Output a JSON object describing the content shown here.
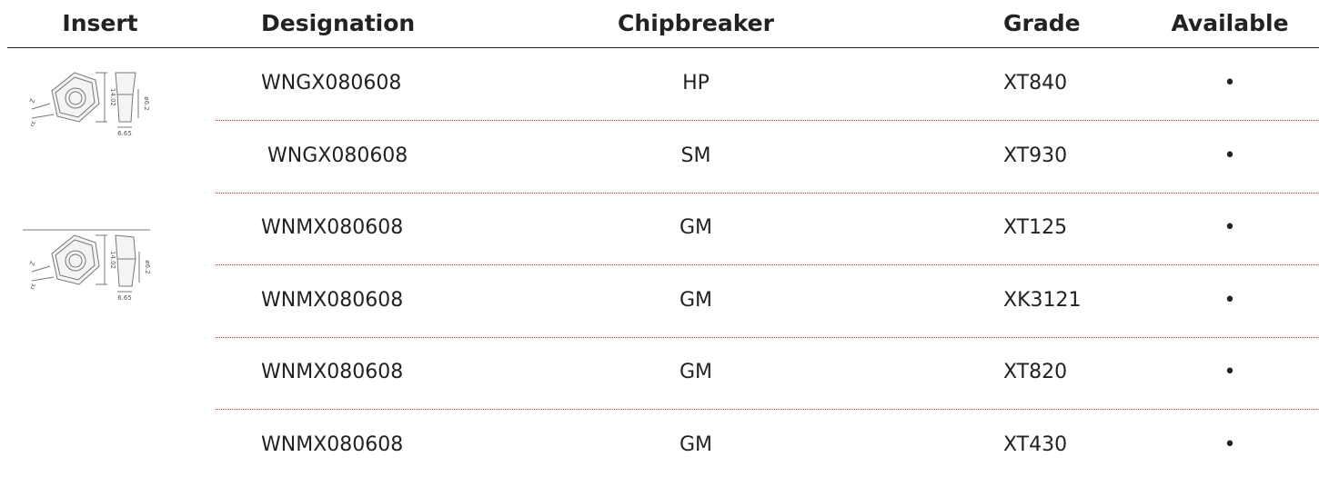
{
  "header": [
    "Insert",
    "Designation",
    "Chipbreaker",
    "Grade",
    "Available"
  ],
  "inserts": [
    {
      "labels": [
        "14.02",
        "6.65",
        "ø6.2",
        "Z",
        "rε"
      ]
    },
    {
      "labels": [
        "14.02",
        "6.65",
        "ø6.2",
        "Z",
        "rε"
      ]
    }
  ],
  "rows": [
    [
      "WNGX080608",
      "HP",
      "XT840",
      "•"
    ],
    [
      " WNGX080608",
      "SM",
      "XT930",
      "•"
    ],
    [
      "WNMX080608",
      "GM",
      "XT125",
      "•"
    ],
    [
      "WNMX080608",
      "GM",
      "XK3121",
      "•"
    ],
    [
      "WNMX080608",
      "GM",
      "XT820",
      "•"
    ],
    [
      "WNMX080608",
      "GM",
      "XT430",
      "•"
    ]
  ]
}
